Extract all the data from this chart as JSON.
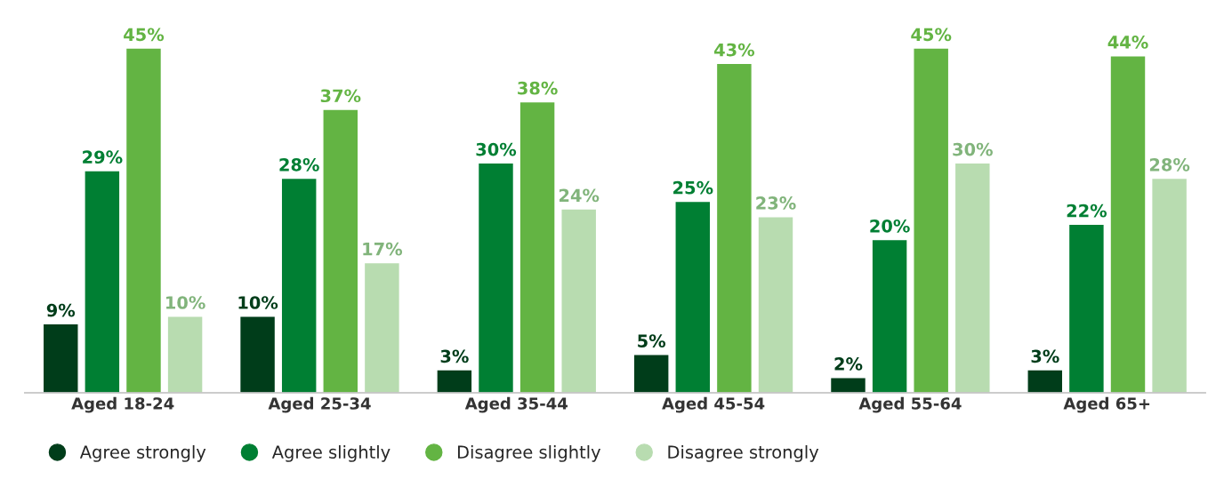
{
  "chart_data": {
    "type": "bar",
    "categories": [
      "Aged 18-24",
      "Aged 25-34",
      "Aged 35-44",
      "Aged 45-54",
      "Aged 55-64",
      "Aged 65+"
    ],
    "series": [
      {
        "name": "Agree strongly",
        "color": "#003d1a",
        "values": [
          9,
          10,
          3,
          5,
          2,
          3
        ],
        "value_labels": [
          "9%",
          "10%",
          "3%",
          "5%",
          "2%",
          "3%"
        ]
      },
      {
        "name": "Agree slightly",
        "color": "#007f33",
        "values": [
          29,
          28,
          30,
          25,
          20,
          22
        ],
        "value_labels": [
          "29%",
          "28%",
          "30%",
          "25%",
          "20%",
          "22%"
        ]
      },
      {
        "name": "Disagree slightly",
        "color": "#63b443",
        "values": [
          45,
          37,
          38,
          43,
          45,
          44
        ],
        "value_labels": [
          "45%",
          "37%",
          "38%",
          "43%",
          "45%",
          "44%"
        ]
      },
      {
        "name": "Disagree strongly",
        "color": "#b8dcb0",
        "values": [
          10,
          17,
          24,
          23,
          30,
          28
        ],
        "value_labels": [
          "10%",
          "17%",
          "24%",
          "23%",
          "30%",
          "28%"
        ]
      }
    ],
    "legend": "bottom left",
    "tick_labels": "x"
  }
}
